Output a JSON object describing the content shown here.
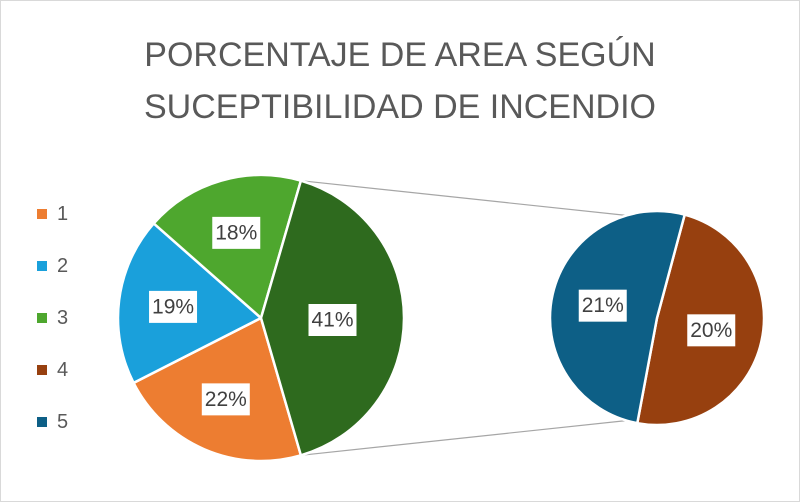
{
  "chart_data": {
    "type": "pie",
    "subtype": "pie-of-pie",
    "title_lines": [
      "PORCENTAJE DE AREA SEGÚN",
      "SUCEPTIBILIDAD DE INCENDIO"
    ],
    "legend_position": "left",
    "categories": [
      "1",
      "2",
      "3",
      "4",
      "5"
    ],
    "values": [
      22,
      19,
      18,
      20,
      21
    ],
    "labels": [
      "22%",
      "19%",
      "18%",
      "20%",
      "21%"
    ],
    "colors": [
      "#ED7D31",
      "#1AA0DB",
      "#4EA72E",
      "#97400F",
      "#0D5F86"
    ],
    "main_pie": [
      "1",
      "2",
      "3"
    ],
    "secondary_pie": [
      "4",
      "5"
    ],
    "other_label": "41%",
    "other_color": "#2E6A1E"
  }
}
